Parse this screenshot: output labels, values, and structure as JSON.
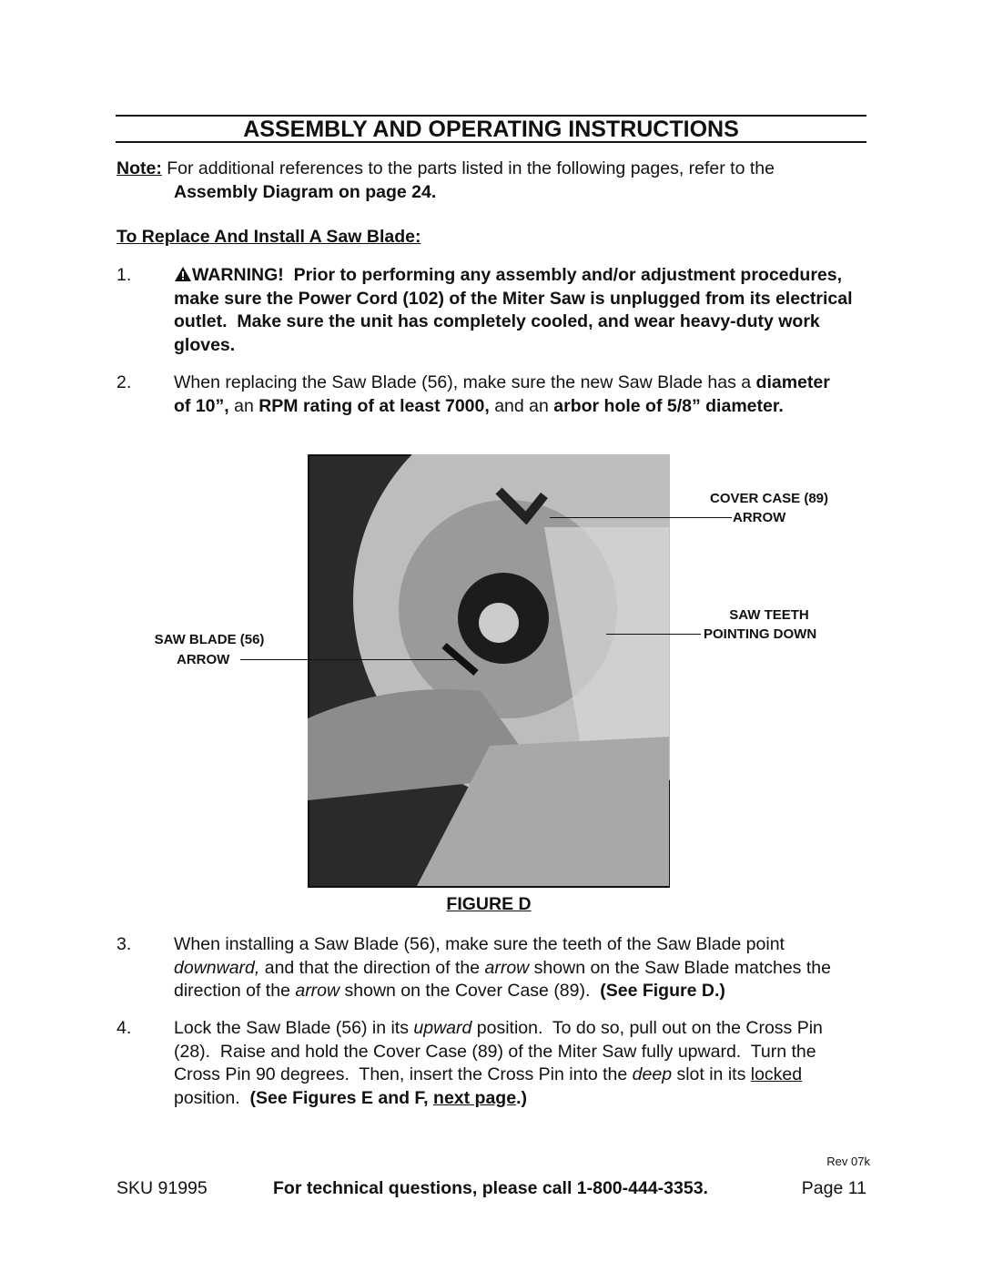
{
  "header": {
    "title": "ASSEMBLY AND OPERATING INSTRUCTIONS"
  },
  "note": {
    "label": "Note:",
    "runs": [
      "For additional references to the parts listed in the following pages, refer to the ",
      "Assembly Diagram on page 24."
    ]
  },
  "section_heading": "To Replace And Install A Saw Blade:",
  "steps": [
    {
      "number": "1.",
      "runs": [
        "WARNING!  Prior to performing any assembly and/or adjustment procedures, make sure the Power Cord (102) of the Miter Saw is unplugged from its electrical outlet.  Make sure the unit has completely cooled, and wear heavy-duty work gloves."
      ]
    },
    {
      "number": "2.",
      "runs": [
        "When replacing the Saw Blade (56), make sure the new Saw Blade has a ",
        "diameter of 10”,",
        " an ",
        "RPM rating of at least 7000,",
        " and an ",
        "arbor hole of 5/8” diameter."
      ]
    },
    {
      "number": "3.",
      "runs": [
        "When installing a Saw Blade (56), make sure the teeth of the Saw Blade point ",
        "downward,",
        " and that the direction of the ",
        "arrow",
        " shown on the Saw Blade matches the direction of the ",
        "arrow",
        " shown on the Cover Case (89).  ",
        "(See Figure D.)"
      ]
    },
    {
      "number": "4.",
      "runs": [
        "Lock the Saw Blade (56) in its ",
        "upward",
        " position.  To do so, pull out on the Cross Pin (28).  Raise and hold the Cover Case (89) of the Miter Saw fully upward.  Turn the Cross Pin 90 degrees.  Then, insert the Cross Pin into the ",
        "deep",
        " slot in its ",
        "locked",
        " position.  ",
        "(See Figures E and F, ",
        "next page",
        ".)"
      ]
    }
  ],
  "figure": {
    "callouts": [
      "COVER CASE (89)",
      "ARROW",
      "SAW TEETH",
      "POINTING DOWN",
      "SAW BLADE (56)",
      "ARROW"
    ],
    "caption": "FIGURE D"
  },
  "footer": {
    "revision": "Rev 07k",
    "sku": "SKU 91995",
    "support": "For technical questions, please call 1-800-444-3353.",
    "page": "Page 11"
  }
}
